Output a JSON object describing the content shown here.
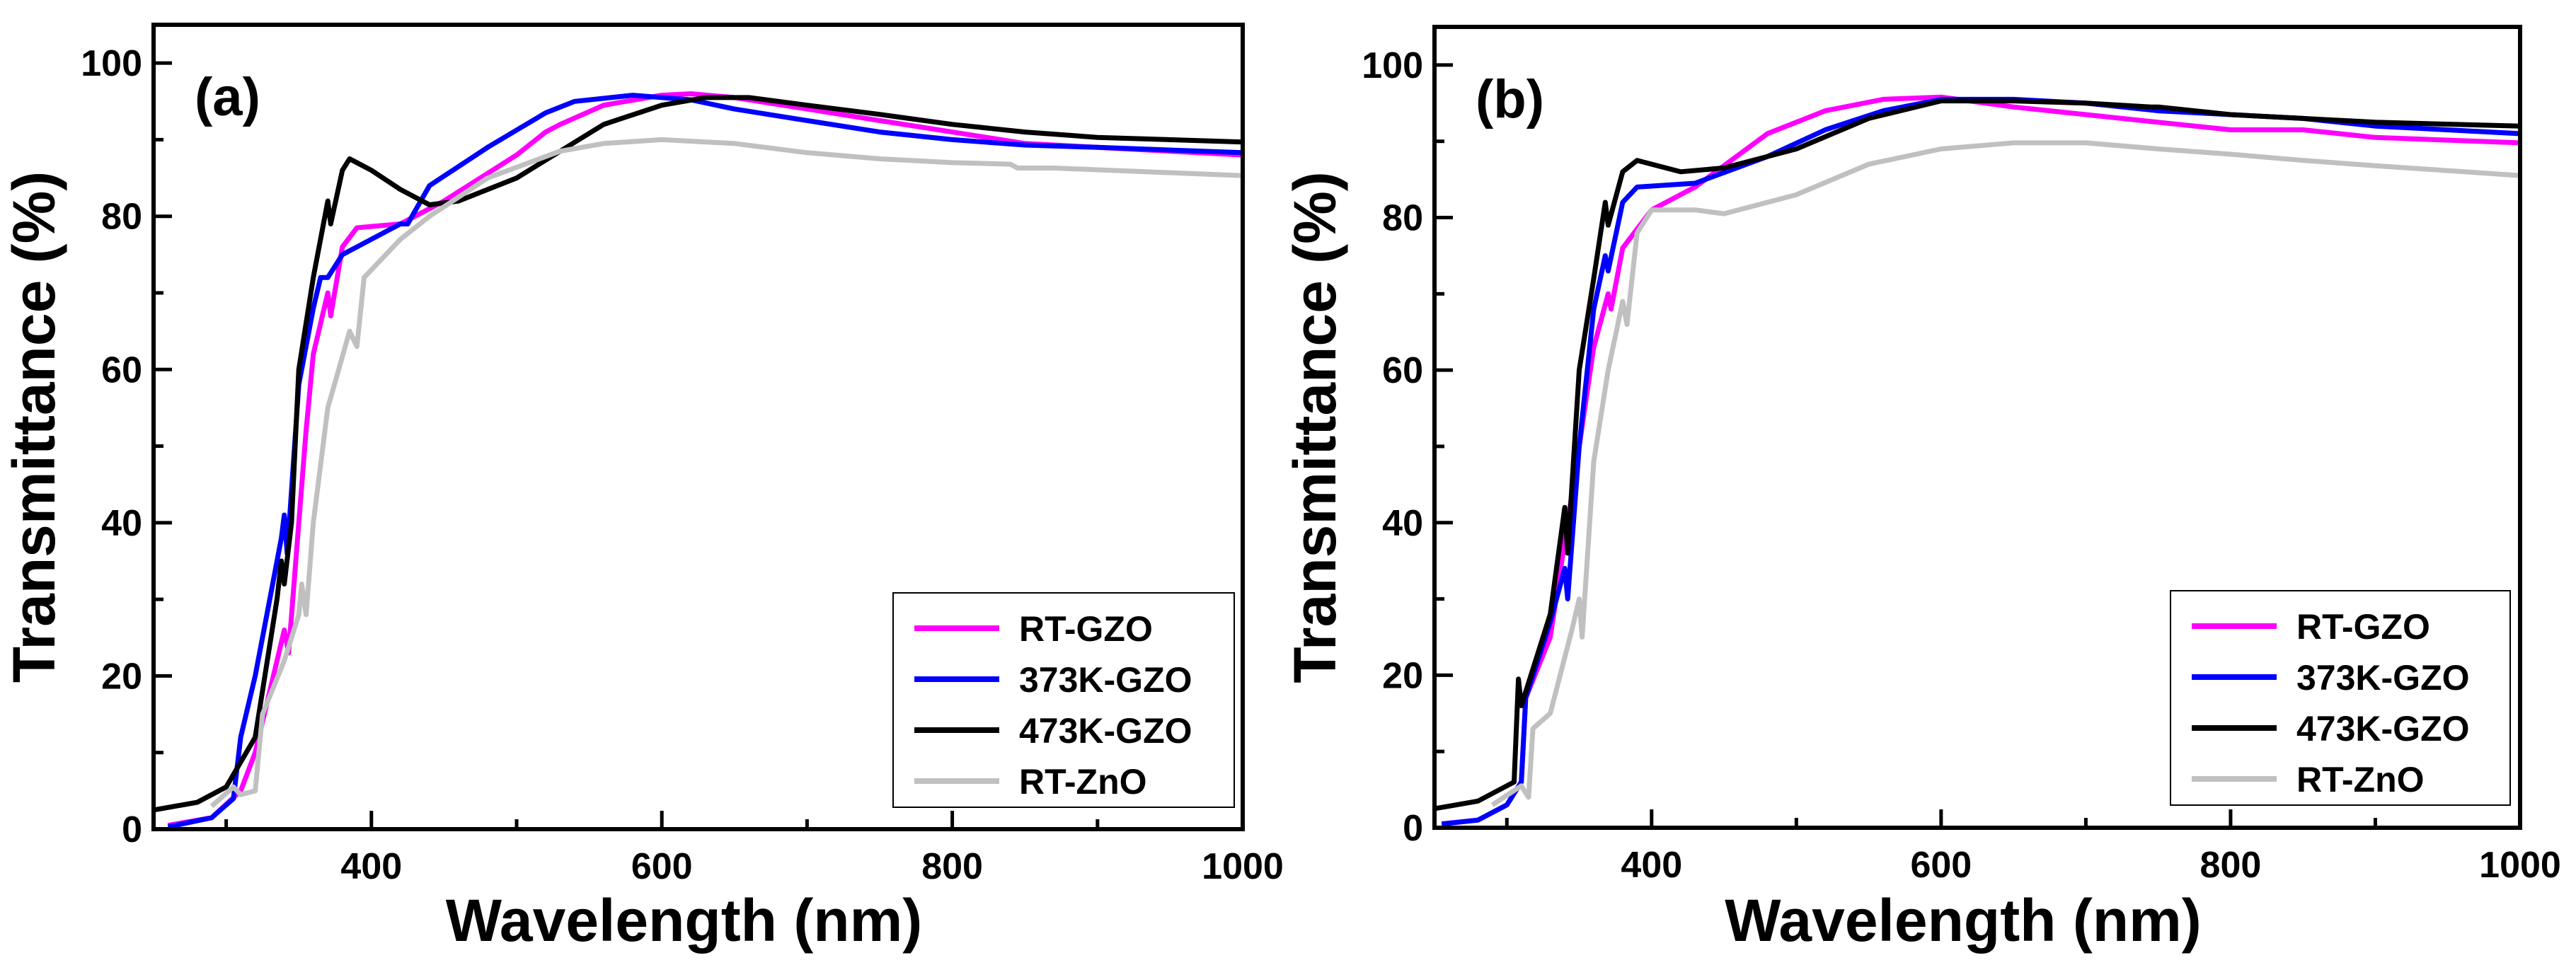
{
  "chart_data": [
    {
      "type": "line",
      "panel_label": "(a)",
      "xlabel": "Wavelength (nm)",
      "ylabel": "Transmittance (%)",
      "xlim": [
        250,
        1000
      ],
      "ylim": [
        0,
        105
      ],
      "xticks": [
        400,
        600,
        800,
        1000
      ],
      "yticks": [
        0,
        20,
        40,
        60,
        80,
        100
      ],
      "grid": false,
      "legend_position": "bottom-right",
      "series": [
        {
          "name": "RT-GZO",
          "color": "#ff00ff",
          "points": [
            [
              260,
              0.5
            ],
            [
              290,
              1.5
            ],
            [
              310,
              5
            ],
            [
              320,
              10
            ],
            [
              330,
              18
            ],
            [
              340,
              26
            ],
            [
              343,
              23
            ],
            [
              350,
              40
            ],
            [
              355,
              52
            ],
            [
              360,
              62
            ],
            [
              370,
              70
            ],
            [
              372,
              67
            ],
            [
              380,
              76
            ],
            [
              390,
              78.5
            ],
            [
              420,
              79
            ],
            [
              450,
              82
            ],
            [
              500,
              88
            ],
            [
              520,
              91
            ],
            [
              530,
              92
            ],
            [
              560,
              94.5
            ],
            [
              600,
              95.8
            ],
            [
              620,
              96
            ],
            [
              650,
              95.5
            ],
            [
              700,
              94
            ],
            [
              750,
              92.5
            ],
            [
              800,
              91
            ],
            [
              850,
              89.5
            ],
            [
              900,
              89
            ],
            [
              1000,
              88
            ]
          ]
        },
        {
          "name": "373K-GZO",
          "color": "#0000ff",
          "points": [
            [
              260,
              0.3
            ],
            [
              290,
              1.5
            ],
            [
              305,
              4
            ],
            [
              310,
              12
            ],
            [
              320,
              20
            ],
            [
              330,
              30
            ],
            [
              338,
              38
            ],
            [
              340,
              41
            ],
            [
              342,
              36
            ],
            [
              350,
              58
            ],
            [
              360,
              68
            ],
            [
              365,
              72
            ],
            [
              370,
              72
            ],
            [
              380,
              75
            ],
            [
              400,
              77
            ],
            [
              420,
              79
            ],
            [
              425,
              79
            ],
            [
              440,
              84
            ],
            [
              480,
              89
            ],
            [
              520,
              93.5
            ],
            [
              540,
              95
            ],
            [
              580,
              95.8
            ],
            [
              620,
              95.2
            ],
            [
              650,
              94
            ],
            [
              700,
              92.5
            ],
            [
              750,
              91
            ],
            [
              800,
              90
            ],
            [
              850,
              89.3
            ],
            [
              900,
              89
            ],
            [
              1000,
              88.3
            ]
          ]
        },
        {
          "name": "473K-GZO",
          "color": "#000000",
          "points": [
            [
              250,
              2.5
            ],
            [
              280,
              3.5
            ],
            [
              300,
              5.5
            ],
            [
              320,
              12
            ],
            [
              335,
              30
            ],
            [
              338,
              35
            ],
            [
              340,
              32
            ],
            [
              345,
              40
            ],
            [
              350,
              60
            ],
            [
              360,
              72
            ],
            [
              368,
              80
            ],
            [
              370,
              82
            ],
            [
              372,
              79
            ],
            [
              380,
              86
            ],
            [
              385,
              87.5
            ],
            [
              400,
              86
            ],
            [
              420,
              83.5
            ],
            [
              440,
              81.5
            ],
            [
              460,
              82
            ],
            [
              500,
              85
            ],
            [
              530,
              88.5
            ],
            [
              560,
              92
            ],
            [
              600,
              94.5
            ],
            [
              630,
              95.5
            ],
            [
              660,
              95.5
            ],
            [
              700,
              94.5
            ],
            [
              750,
              93.3
            ],
            [
              800,
              92
            ],
            [
              850,
              91
            ],
            [
              900,
              90.3
            ],
            [
              1000,
              89.7
            ]
          ]
        },
        {
          "name": "RT-ZnO",
          "color": "#c0c0c0",
          "points": [
            [
              290,
              3
            ],
            [
              305,
              5.5
            ],
            [
              310,
              4.5
            ],
            [
              320,
              5
            ],
            [
              325,
              15
            ],
            [
              340,
              22
            ],
            [
              350,
              28
            ],
            [
              352,
              32
            ],
            [
              355,
              28
            ],
            [
              360,
              40
            ],
            [
              370,
              55
            ],
            [
              385,
              65
            ],
            [
              390,
              63
            ],
            [
              395,
              72
            ],
            [
              420,
              77
            ],
            [
              440,
              80
            ],
            [
              480,
              85
            ],
            [
              530,
              88.5
            ],
            [
              560,
              89.5
            ],
            [
              600,
              90
            ],
            [
              650,
              89.5
            ],
            [
              700,
              88.3
            ],
            [
              750,
              87.5
            ],
            [
              800,
              87
            ],
            [
              840,
              86.8
            ],
            [
              845,
              86.3
            ],
            [
              870,
              86.3
            ],
            [
              1000,
              85.3
            ]
          ]
        }
      ]
    },
    {
      "type": "line",
      "panel_label": "(b)",
      "xlabel": "Wavelength (nm)",
      "ylabel": "Transmittance (%)",
      "xlim": [
        250,
        1000
      ],
      "ylim": [
        0,
        105
      ],
      "xticks": [
        400,
        600,
        800,
        1000
      ],
      "yticks": [
        0,
        20,
        40,
        60,
        80,
        100
      ],
      "grid": false,
      "legend_position": "bottom-right",
      "series": [
        {
          "name": "RT-GZO",
          "color": "#ff00ff",
          "points": [
            [
              255,
              0.5
            ],
            [
              280,
              1
            ],
            [
              300,
              3
            ],
            [
              310,
              6
            ],
            [
              313,
              17
            ],
            [
              330,
              25
            ],
            [
              350,
              50
            ],
            [
              360,
              63
            ],
            [
              370,
              70
            ],
            [
              372,
              68
            ],
            [
              380,
              76
            ],
            [
              400,
              81
            ],
            [
              430,
              84
            ],
            [
              480,
              91
            ],
            [
              520,
              94
            ],
            [
              560,
              95.5
            ],
            [
              600,
              95.8
            ],
            [
              650,
              94.5
            ],
            [
              700,
              93.5
            ],
            [
              750,
              92.5
            ],
            [
              800,
              91.5
            ],
            [
              850,
              91.5
            ],
            [
              900,
              90.5
            ],
            [
              1000,
              89.8
            ]
          ]
        },
        {
          "name": "373K-GZO",
          "color": "#0000ff",
          "points": [
            [
              255,
              0.5
            ],
            [
              280,
              1
            ],
            [
              300,
              3
            ],
            [
              310,
              6
            ],
            [
              313,
              17
            ],
            [
              330,
              27
            ],
            [
              340,
              34
            ],
            [
              342,
              30
            ],
            [
              350,
              50
            ],
            [
              360,
              68
            ],
            [
              368,
              75
            ],
            [
              370,
              73
            ],
            [
              380,
              82
            ],
            [
              390,
              84
            ],
            [
              430,
              84.5
            ],
            [
              480,
              88
            ],
            [
              520,
              91.5
            ],
            [
              560,
              94
            ],
            [
              600,
              95.5
            ],
            [
              650,
              95.5
            ],
            [
              700,
              95
            ],
            [
              750,
              94
            ],
            [
              800,
              93.5
            ],
            [
              850,
              93
            ],
            [
              900,
              92
            ],
            [
              1000,
              91
            ]
          ]
        },
        {
          "name": "473K-GZO",
          "color": "#000000",
          "points": [
            [
              250,
              2.5
            ],
            [
              280,
              3.5
            ],
            [
              305,
              6
            ],
            [
              308,
              19.5
            ],
            [
              310,
              16
            ],
            [
              330,
              28
            ],
            [
              340,
              42
            ],
            [
              342,
              36
            ],
            [
              350,
              60
            ],
            [
              360,
              72
            ],
            [
              368,
              82
            ],
            [
              370,
              79
            ],
            [
              380,
              86
            ],
            [
              390,
              87.5
            ],
            [
              420,
              86
            ],
            [
              450,
              86.5
            ],
            [
              500,
              89
            ],
            [
              550,
              93
            ],
            [
              600,
              95.3
            ],
            [
              650,
              95.3
            ],
            [
              700,
              95
            ],
            [
              745,
              94.5
            ],
            [
              750,
              94.5
            ],
            [
              800,
              93.5
            ],
            [
              850,
              93
            ],
            [
              900,
              92.5
            ],
            [
              1000,
              92
            ]
          ]
        },
        {
          "name": "RT-ZnO",
          "color": "#c0c0c0",
          "points": [
            [
              290,
              3
            ],
            [
              310,
              5.5
            ],
            [
              315,
              4
            ],
            [
              318,
              13
            ],
            [
              330,
              15
            ],
            [
              345,
              26
            ],
            [
              350,
              30
            ],
            [
              352,
              25
            ],
            [
              360,
              48
            ],
            [
              370,
              60
            ],
            [
              380,
              69
            ],
            [
              383,
              66
            ],
            [
              390,
              78
            ],
            [
              400,
              81
            ],
            [
              430,
              81
            ],
            [
              450,
              80.5
            ],
            [
              500,
              83
            ],
            [
              550,
              87
            ],
            [
              600,
              89
            ],
            [
              650,
              89.8
            ],
            [
              700,
              89.8
            ],
            [
              750,
              89
            ],
            [
              800,
              88.3
            ],
            [
              850,
              87.5
            ],
            [
              900,
              86.8
            ],
            [
              1000,
              85.5
            ]
          ]
        }
      ]
    }
  ]
}
